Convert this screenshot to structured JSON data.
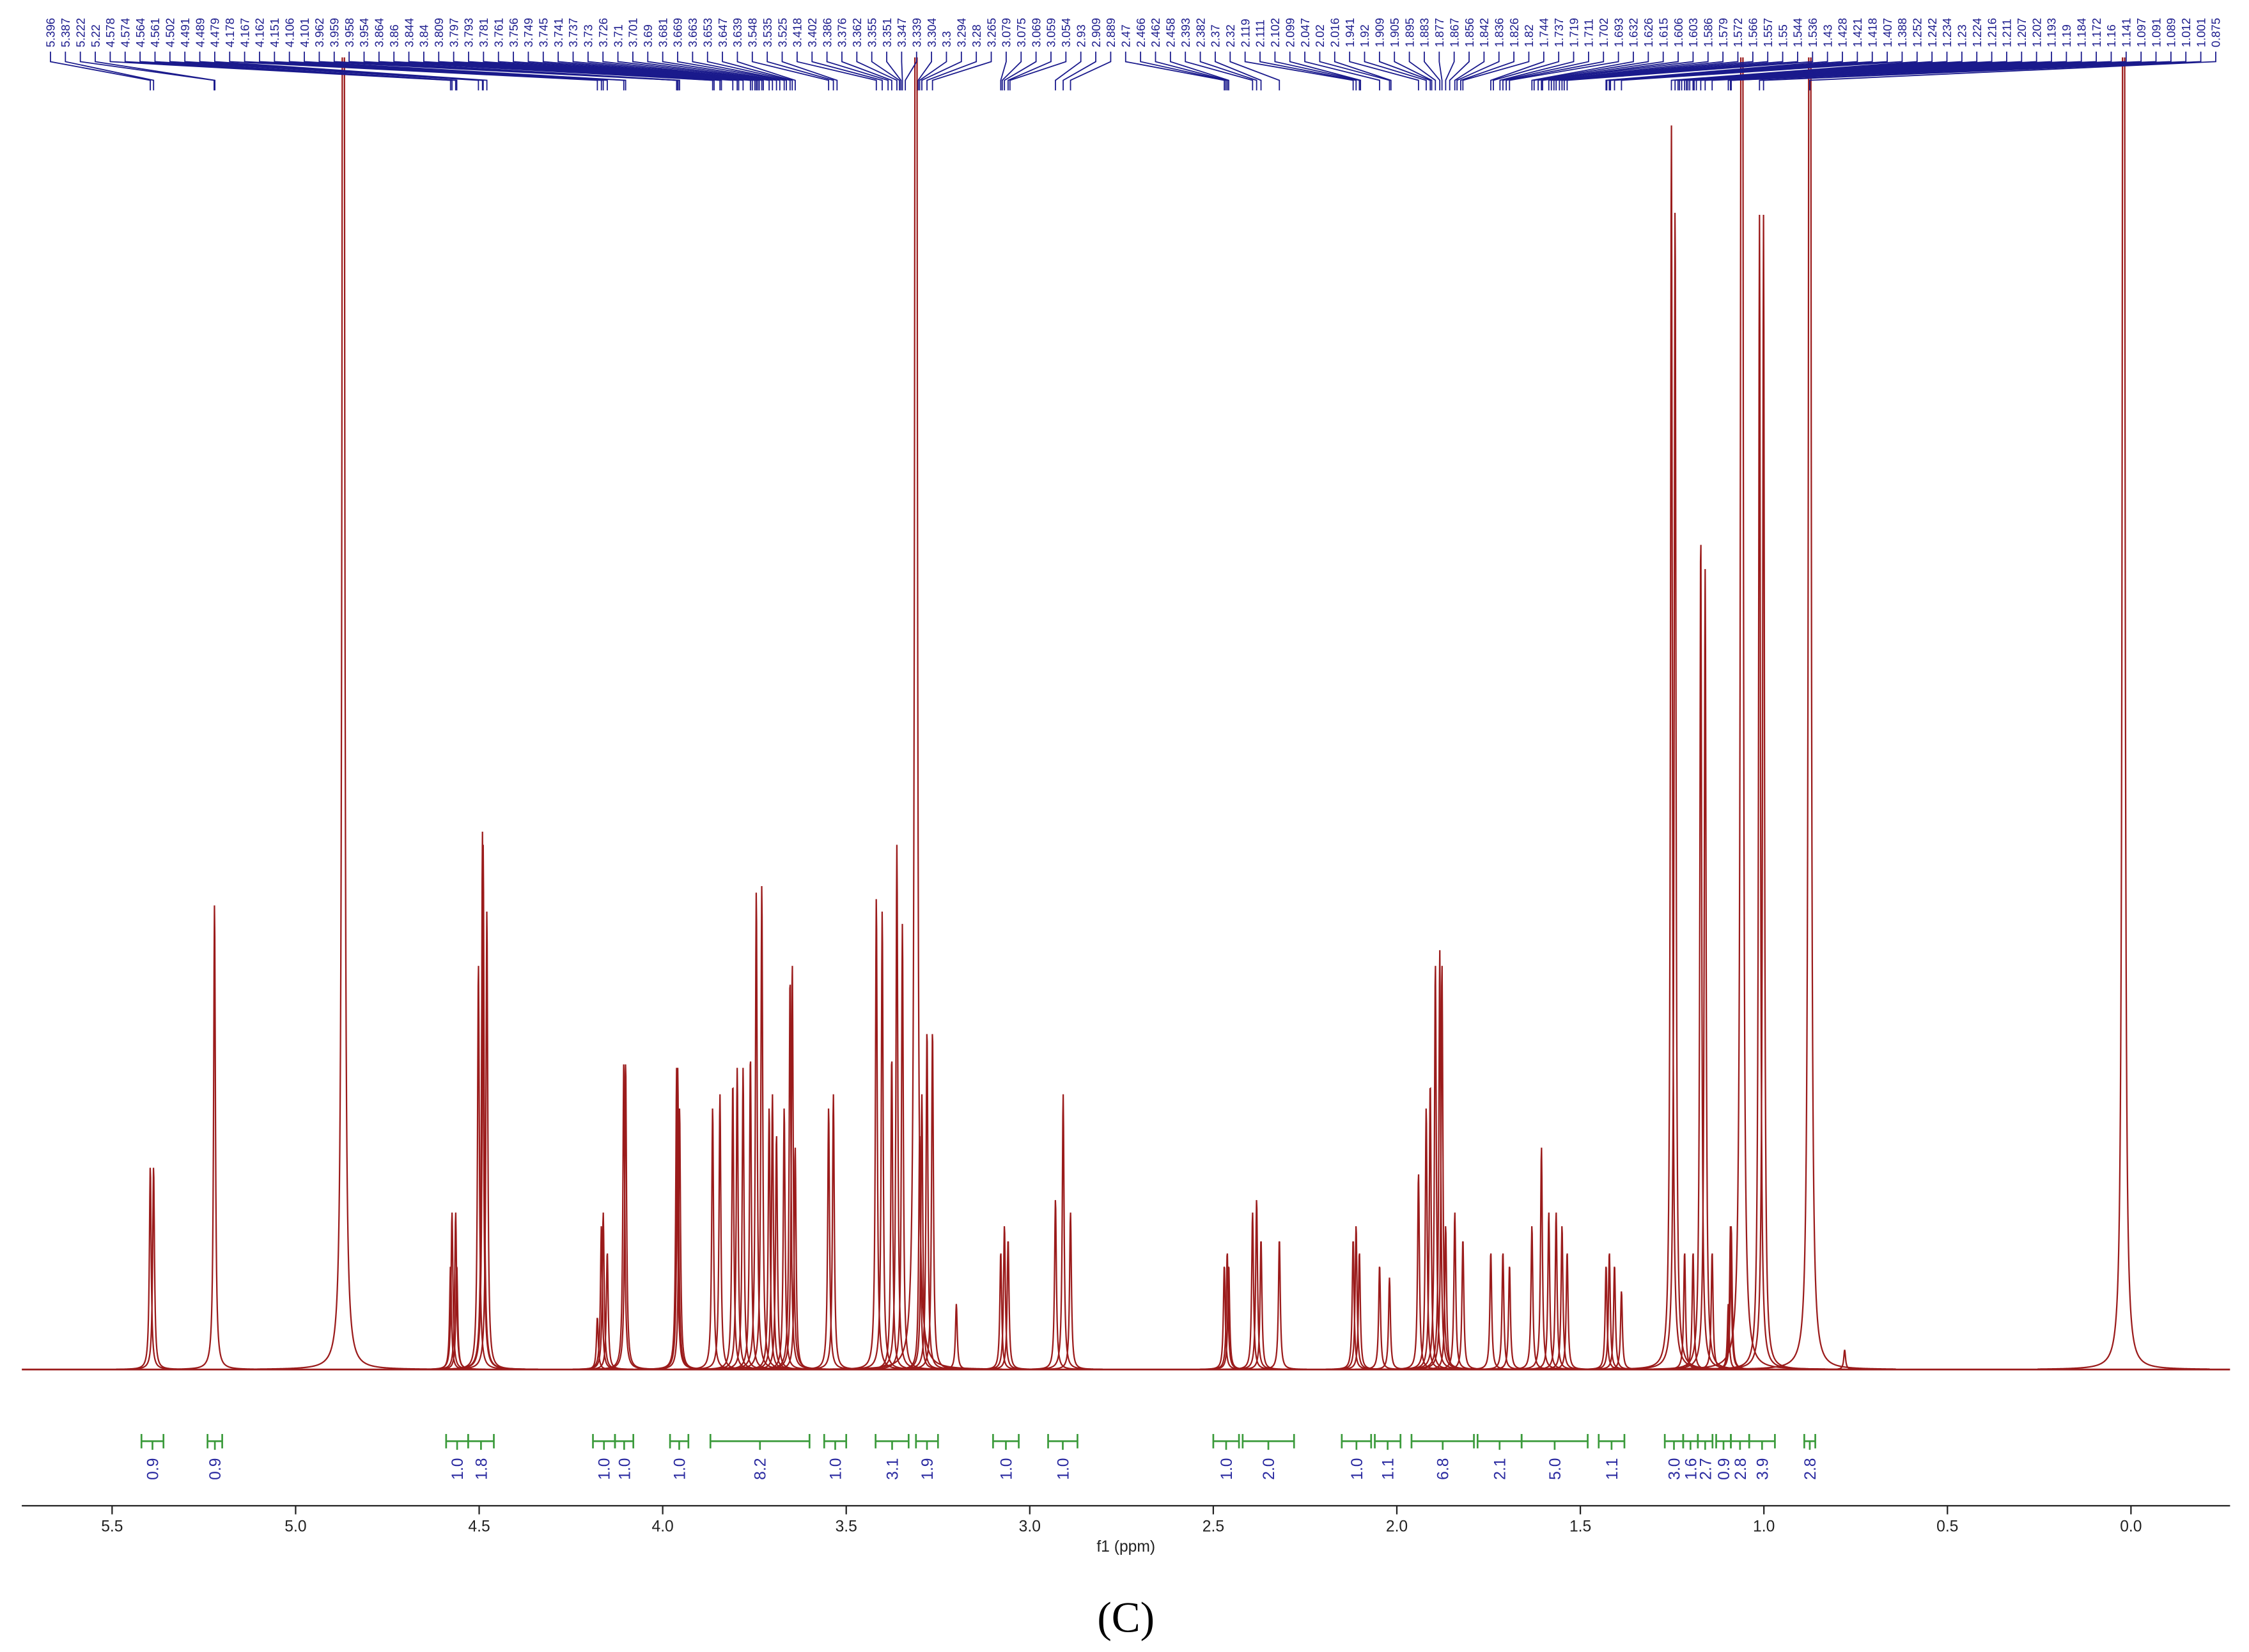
{
  "chart_data": {
    "type": "nmr",
    "x_label": "f1 (ppm)",
    "caption": "(C)",
    "xlim": [
      5.746,
      -0.27
    ],
    "ylim": [
      0,
      100
    ],
    "xticks": [
      5.5,
      {
        "value": 5,
        "label": "5.0"
      },
      4.5,
      {
        "value": 4,
        "label": "4.0"
      },
      3.5,
      {
        "value": 3,
        "label": "3.0"
      },
      2.5,
      {
        "value": 2,
        "label": "2.0"
      },
      1.5,
      {
        "value": 1,
        "label": "1.0"
      },
      0.5,
      {
        "value": 0,
        "label": "0.0"
      }
    ],
    "spectrum_color": "#9b1b1b",
    "label_color": "#1a1a8c",
    "integral_color": "#3a9a3a",
    "peak_labels": [
      5.396,
      5.387,
      5.222,
      5.22,
      4.578,
      4.574,
      4.564,
      4.561,
      4.502,
      4.491,
      4.489,
      4.479,
      4.178,
      4.167,
      4.162,
      4.151,
      4.106,
      4.101,
      3.962,
      3.959,
      3.958,
      3.954,
      3.864,
      3.86,
      3.844,
      3.84,
      3.809,
      3.797,
      3.793,
      3.781,
      3.761,
      3.756,
      3.749,
      3.745,
      3.741,
      3.737,
      3.73,
      3.726,
      3.71,
      3.701,
      3.69,
      3.681,
      3.669,
      3.663,
      3.653,
      3.647,
      3.639,
      3.548,
      3.535,
      3.525,
      3.418,
      3.402,
      3.386,
      3.376,
      3.362,
      3.355,
      3.351,
      3.347,
      3.339,
      3.304,
      3.3,
      3.294,
      3.28,
      3.265,
      3.079,
      3.075,
      3.069,
      3.059,
      3.054,
      2.93,
      2.909,
      2.889,
      2.47,
      2.466,
      2.462,
      2.458,
      2.393,
      2.382,
      2.37,
      2.32,
      2.119,
      2.111,
      2.102,
      2.099,
      2.047,
      2.02,
      2.016,
      1.941,
      1.92,
      1.909,
      1.905,
      1.895,
      1.883,
      1.877,
      1.867,
      1.856,
      1.842,
      1.836,
      1.826,
      1.82,
      1.744,
      1.737,
      1.719,
      1.711,
      1.702,
      1.693,
      1.632,
      1.626,
      1.615,
      1.606,
      1.603,
      1.586,
      1.579,
      1.572,
      1.566,
      1.557,
      1.55,
      1.544,
      1.536,
      1.43,
      1.428,
      1.421,
      1.418,
      1.407,
      1.388,
      1.252,
      1.242,
      1.234,
      1.23,
      1.224,
      1.216,
      1.211,
      1.207,
      1.202,
      1.193,
      1.19,
      1.184,
      1.172,
      1.16,
      1.141,
      1.097,
      1.091,
      1.089,
      1.012,
      1.001,
      0.875
    ],
    "spectrum": {
      "ppm": [
        5.396,
        5.387,
        5.221,
        4.87,
        4.578,
        4.574,
        4.564,
        4.561,
        4.502,
        4.491,
        4.489,
        4.479,
        4.178,
        4.167,
        4.162,
        4.151,
        4.106,
        4.101,
        3.962,
        3.959,
        3.954,
        3.864,
        3.844,
        3.809,
        3.797,
        3.781,
        3.761,
        3.745,
        3.73,
        3.71,
        3.701,
        3.69,
        3.669,
        3.653,
        3.647,
        3.639,
        3.548,
        3.535,
        3.418,
        3.402,
        3.376,
        3.362,
        3.347,
        3.31,
        3.3,
        3.294,
        3.28,
        3.265,
        3.2,
        3.079,
        3.069,
        3.059,
        2.93,
        2.909,
        2.889,
        2.47,
        2.462,
        2.458,
        2.393,
        2.382,
        2.37,
        2.32,
        2.119,
        2.111,
        2.102,
        2.047,
        2.02,
        1.941,
        1.92,
        1.909,
        1.895,
        1.883,
        1.877,
        1.867,
        1.842,
        1.82,
        1.744,
        1.711,
        1.693,
        1.632,
        1.606,
        1.586,
        1.566,
        1.55,
        1.536,
        1.43,
        1.421,
        1.407,
        1.388,
        1.252,
        1.242,
        1.216,
        1.193,
        1.172,
        1.16,
        1.141,
        1.097,
        1.091,
        1.089,
        1.06,
        1.012,
        1.001,
        0.875,
        0.78,
        0.02
      ],
      "intensity": [
        15.5,
        15.5,
        35.5,
        200,
        8,
        12,
        12,
        8,
        31,
        41,
        40,
        35,
        4,
        11,
        12,
        9,
        23.5,
        23.5,
        23,
        23,
        20,
        20,
        21,
        22,
        23,
        23,
        24,
        36.5,
        37,
        20,
        21,
        18,
        20,
        30,
        31,
        17,
        20,
        21,
        36,
        35,
        24,
        40,
        34,
        200,
        18,
        21,
        26,
        26,
        5,
        9,
        11,
        10,
        13,
        21,
        12,
        8,
        9,
        8,
        12,
        13,
        10,
        10,
        10,
        11,
        9,
        8,
        7,
        15,
        20,
        22,
        31,
        32,
        31,
        11,
        12,
        10,
        9,
        9,
        8,
        11,
        17,
        12,
        12,
        11,
        9,
        8,
        9,
        8,
        6,
        95,
        89,
        9,
        9,
        64,
        61,
        9,
        5,
        11,
        11,
        200,
        88,
        88,
        200,
        1.5,
        200
      ]
    },
    "integrals": {
      "values": [
        0.9,
        0.9,
        1,
        1.8,
        1,
        1,
        1,
        8.2,
        1,
        3.1,
        1.9,
        1,
        1,
        1,
        2,
        1,
        1.1,
        6.8,
        2.1,
        5,
        1.1,
        3,
        1.6,
        2.7,
        0.9,
        2.8,
        3.9,
        2.8
      ],
      "value_labels": [
        "0.9",
        "0.9",
        "1.0",
        "1.8",
        "1.0",
        "1.0",
        "1.0",
        "8.2",
        "1.0",
        "3.1",
        "1.9",
        "1.0",
        "1.0",
        "1.0",
        "2.0",
        "1.0",
        "1.1",
        "6.8",
        "2.1",
        "5.0",
        "1.1",
        "3.0",
        "1.6",
        "2.7",
        "0.9",
        "2.8",
        "3.9",
        "2.8"
      ],
      "from": [
        5.42,
        5.24,
        4.59,
        4.53,
        4.19,
        4.13,
        3.98,
        3.87,
        3.56,
        3.42,
        3.31,
        3.1,
        2.95,
        2.5,
        2.42,
        2.15,
        2.06,
        1.96,
        1.78,
        1.66,
        1.45,
        1.27,
        1.22,
        1.18,
        1.13,
        1.09,
        1.04,
        0.89
      ],
      "to": [
        5.36,
        5.2,
        4.53,
        4.46,
        4.13,
        4.08,
        3.93,
        3.6,
        3.5,
        3.33,
        3.25,
        3.03,
        2.87,
        2.43,
        2.28,
        2.07,
        1.99,
        1.79,
        1.66,
        1.48,
        1.38,
        1.22,
        1.18,
        1.14,
        1.09,
        1.04,
        0.97,
        0.86
      ]
    }
  }
}
